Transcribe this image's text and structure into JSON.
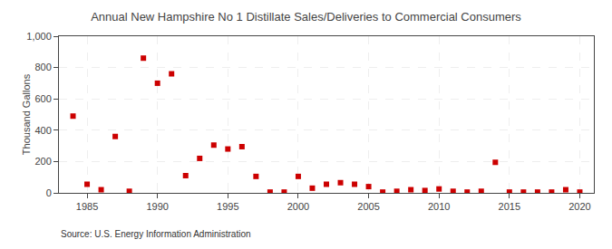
{
  "chart_data": {
    "type": "scatter",
    "title": "Annual New Hampshire No 1 Distillate Sales/Deliveries to Commercial Consumers",
    "y_label": "Thousand Gallons",
    "annotations": [
      "Source: U.S. Energy Information Administration"
    ],
    "x": [
      1984,
      1985,
      1986,
      1987,
      1988,
      1989,
      1990,
      1991,
      1992,
      1993,
      1994,
      1995,
      1996,
      1997,
      1998,
      1999,
      2000,
      2001,
      2002,
      2003,
      2004,
      2005,
      2006,
      2007,
      2008,
      2009,
      2010,
      2011,
      2012,
      2013,
      2014,
      2015,
      2016,
      2017,
      2018,
      2019,
      2020
    ],
    "values": [
      490,
      55,
      20,
      360,
      10,
      860,
      700,
      760,
      110,
      220,
      305,
      280,
      295,
      105,
      5,
      5,
      105,
      30,
      55,
      65,
      55,
      40,
      5,
      10,
      20,
      15,
      25,
      10,
      5,
      10,
      195,
      5,
      5,
      5,
      5,
      20,
      5
    ],
    "color": "#cc0000",
    "marker": "square",
    "xlim": [
      1983,
      2021
    ],
    "xticks": [
      1985,
      1990,
      1995,
      2000,
      2005,
      2010,
      2015,
      2020
    ],
    "ylim": [
      0,
      1000
    ],
    "yticks": [
      0,
      200,
      400,
      600,
      800,
      {
        "value": 1000,
        "label": "1,000"
      }
    ],
    "grid": true
  }
}
